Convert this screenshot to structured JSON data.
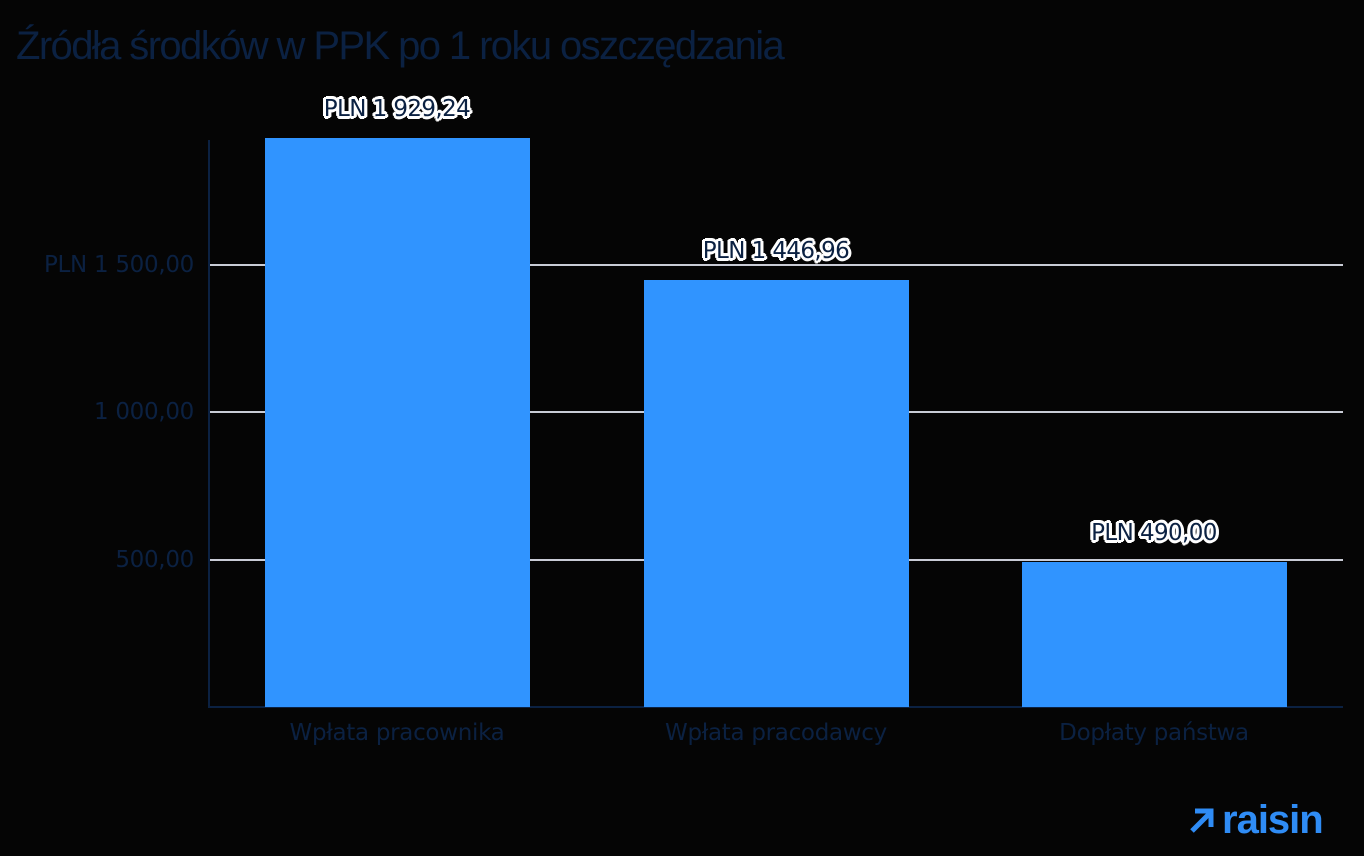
{
  "title": "Źródła środków w PPK po 1 roku oszczędzania",
  "brand": {
    "name": "raisin",
    "color": "#2f8cf5",
    "icon": "arrow-up-right-icon"
  },
  "colors": {
    "bar": "#3094ff",
    "text": "#0b2142",
    "grid": "#c9ccd6",
    "background": "#050505"
  },
  "y_axis": {
    "ticks": [
      {
        "value": 500,
        "label": "500,00"
      },
      {
        "value": 1000,
        "label": "1 000,00"
      },
      {
        "value": 1500,
        "label": "PLN 1 500,00"
      }
    ]
  },
  "bars": [
    {
      "category": "Wpłata pracownika",
      "value": 1929.24,
      "label": "PLN 1 929,24"
    },
    {
      "category": "Wpłata pracodawcy",
      "value": 1446.96,
      "label": "PLN 1 446,96"
    },
    {
      "category": "Dopłaty państwa",
      "value": 490.0,
      "label": "PLN 490,00"
    }
  ],
  "chart_data": {
    "type": "bar",
    "title": "Źródła środków w PPK po 1 roku oszczędzania",
    "categories": [
      "Wpłata pracownika",
      "Wpłata pracodawcy",
      "Dopłaty państwa"
    ],
    "values": [
      1929.24,
      1446.96,
      490.0
    ],
    "data_labels": [
      "PLN 1 929,24",
      "PLN 1 446,96",
      "PLN 490,00"
    ],
    "xlabel": "",
    "ylabel": "",
    "yticks": [
      500,
      1000,
      1500
    ],
    "ytick_labels": [
      "500,00",
      "1 000,00",
      "PLN 1 500,00"
    ],
    "ylim": [
      0,
      1929.24
    ],
    "grid": "horizontal",
    "legend": "none",
    "currency": "PLN"
  }
}
